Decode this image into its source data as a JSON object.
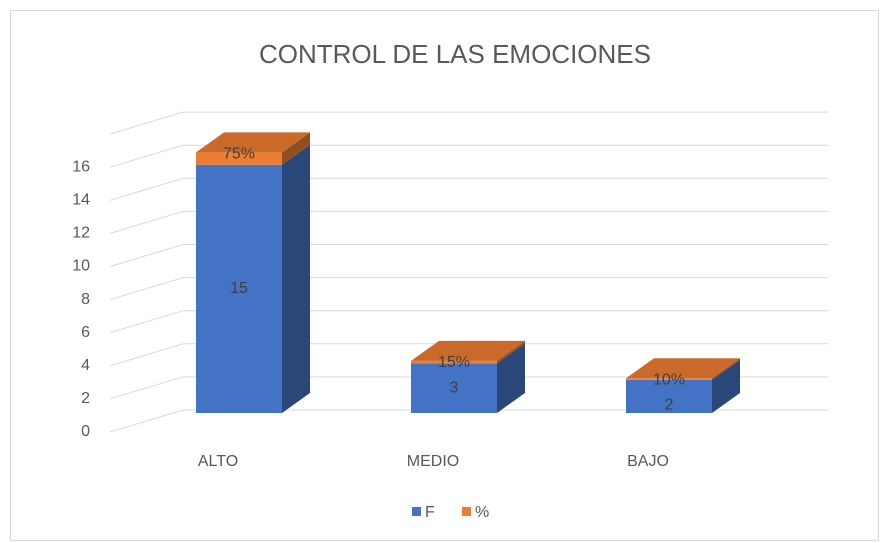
{
  "chart_data": {
    "type": "bar3d_stacked",
    "title": "CONTROL DE LAS EMOCIONES",
    "categories": [
      "ALTO",
      "MEDIO",
      "BAJO"
    ],
    "series": [
      {
        "name": "F",
        "color": "#4472c4",
        "values": [
          15,
          3,
          2
        ]
      },
      {
        "name": "%",
        "color": "#ed7d31",
        "values": [
          0.75,
          0.15,
          0.1
        ],
        "value_labels": [
          "75%",
          "15%",
          "10%"
        ]
      }
    ],
    "ylim": [
      0,
      18
    ],
    "yticks": [
      0,
      2,
      4,
      6,
      8,
      10,
      12,
      14,
      16
    ],
    "grid": true,
    "legend": "bottom"
  }
}
